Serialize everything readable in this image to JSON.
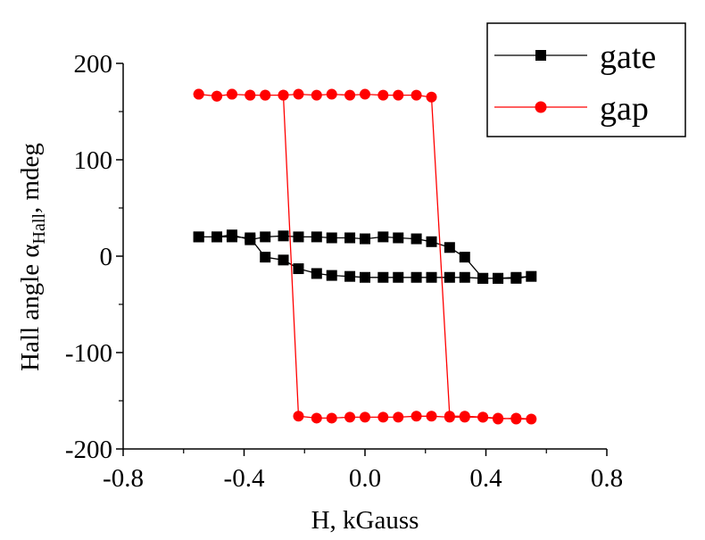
{
  "chart_data": {
    "type": "scatter",
    "xlabel": "H, kGauss",
    "ylabel": {
      "prefix": "Hall angle α",
      "subscript": "Hall",
      "suffix": ", mdeg"
    },
    "xlim": [
      -0.8,
      0.8
    ],
    "ylim": [
      -200,
      200
    ],
    "xticks": [
      -0.8,
      -0.4,
      0.0,
      0.4,
      0.8
    ],
    "xtick_labels": [
      "-0.8",
      "-0.4",
      "0.0",
      "0.4",
      "0.8"
    ],
    "yticks": [
      200,
      100,
      0,
      -100,
      -200
    ],
    "ytick_labels": [
      "200",
      "100",
      "0",
      "-100",
      "-200"
    ],
    "grid": false,
    "legend_position": "top-right",
    "series": [
      {
        "name": "gate",
        "color": "#000000",
        "marker": "square",
        "x": [
          -0.55,
          -0.49,
          -0.44,
          -0.38,
          -0.33,
          -0.27,
          -0.22,
          -0.16,
          -0.11,
          -0.05,
          0.0,
          0.06,
          0.11,
          0.17,
          0.22,
          0.28,
          0.33,
          0.39,
          0.44,
          0.5,
          0.55,
          0.5,
          0.44,
          0.39,
          0.33,
          0.28,
          0.22,
          0.17,
          0.11,
          0.06,
          0.0,
          -0.05,
          -0.11,
          -0.16,
          -0.22,
          -0.27,
          -0.33,
          -0.38,
          -0.44,
          -0.49,
          -0.55
        ],
        "y": [
          20,
          20,
          20,
          19,
          -1,
          -4,
          -13,
          -18,
          -20,
          -21,
          -22,
          -22,
          -22,
          -22,
          -22,
          -22,
          -22,
          -23,
          -23,
          -23,
          -21,
          -22,
          -23,
          -23,
          -1,
          9,
          15,
          18,
          19,
          20,
          18,
          19,
          19,
          20,
          20,
          21,
          20,
          17,
          22,
          20,
          20
        ]
      },
      {
        "name": "gap",
        "color": "#ff0000",
        "marker": "circle",
        "x": [
          -0.55,
          -0.49,
          -0.44,
          -0.38,
          -0.33,
          -0.27,
          -0.22,
          -0.16,
          -0.11,
          -0.05,
          0.0,
          0.06,
          0.11,
          0.17,
          0.22,
          0.28,
          0.33,
          0.39,
          0.44,
          0.5,
          0.55,
          0.5,
          0.44,
          0.39,
          0.33,
          0.28,
          0.22,
          0.17,
          0.11,
          0.06,
          0.0,
          -0.05,
          -0.11,
          -0.16,
          -0.22,
          -0.27,
          -0.33,
          -0.38,
          -0.44,
          -0.49,
          -0.55
        ],
        "y": [
          168,
          166,
          168,
          167,
          167,
          167,
          168,
          167,
          168,
          167,
          168,
          167,
          167,
          167,
          165,
          -166,
          -166,
          -167,
          -168,
          -169,
          -169,
          -168,
          -169,
          -167,
          -167,
          -167,
          -166,
          -166,
          -167,
          -167,
          -167,
          -167,
          -168,
          -168,
          -166,
          167,
          167,
          167,
          168,
          166,
          168
        ]
      }
    ]
  }
}
